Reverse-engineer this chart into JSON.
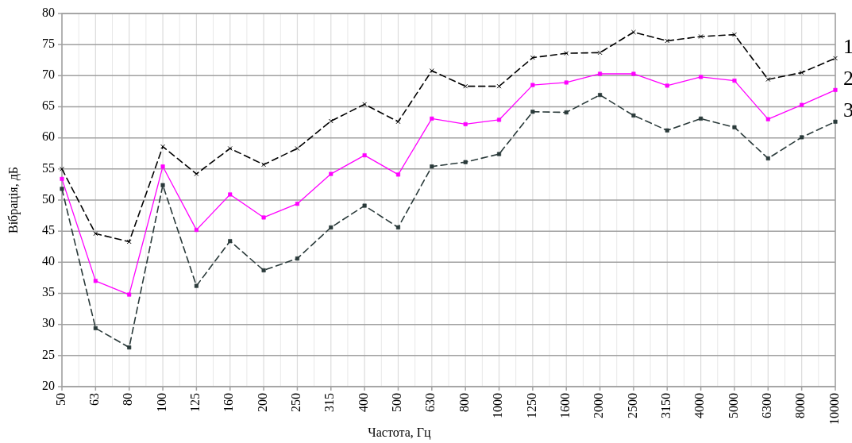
{
  "chart_data": {
    "type": "line",
    "xlabel": "Частота, Гц",
    "ylabel": "Вібрація, дБ",
    "categories": [
      "50",
      "63",
      "80",
      "100",
      "125",
      "160",
      "200",
      "250",
      "315",
      "400",
      "500",
      "630",
      "800",
      "1000",
      "1250",
      "1600",
      "2000",
      "2500",
      "3150",
      "4000",
      "5000",
      "6300",
      "8000",
      "10000"
    ],
    "series": [
      {
        "name": "1",
        "color": "#000000",
        "marker": "cross",
        "line_style": "dashed",
        "values": [
          55.0,
          44.6,
          43.3,
          58.6,
          54.2,
          58.3,
          55.7,
          58.3,
          62.7,
          65.4,
          62.6,
          70.8,
          68.3,
          68.3,
          72.9,
          73.6,
          73.7,
          77.0,
          75.6,
          76.3,
          76.6,
          69.4,
          70.5,
          72.8
        ]
      },
      {
        "name": "2",
        "color": "#ff00ff",
        "marker": "square",
        "line_style": "solid",
        "values": [
          53.4,
          37.0,
          34.8,
          55.4,
          45.2,
          50.9,
          47.2,
          49.4,
          54.2,
          57.2,
          54.1,
          63.1,
          62.2,
          62.9,
          68.5,
          68.9,
          70.3,
          70.3,
          68.4,
          69.8,
          69.2,
          63.0,
          65.3,
          67.7
        ]
      },
      {
        "name": "3",
        "color": "#2a3a3a",
        "marker": "square",
        "line_style": "dashed",
        "values": [
          51.8,
          29.4,
          26.3,
          52.4,
          36.2,
          43.4,
          38.7,
          40.6,
          45.6,
          49.1,
          45.6,
          55.4,
          56.1,
          57.4,
          64.2,
          64.1,
          66.9,
          63.6,
          61.2,
          63.1,
          61.7,
          56.7,
          60.1,
          62.6
        ]
      }
    ],
    "ylim": [
      20,
      80
    ],
    "yticks": [
      20,
      25,
      30,
      35,
      40,
      45,
      50,
      55,
      60,
      65,
      70,
      75,
      80
    ],
    "grid": true
  }
}
